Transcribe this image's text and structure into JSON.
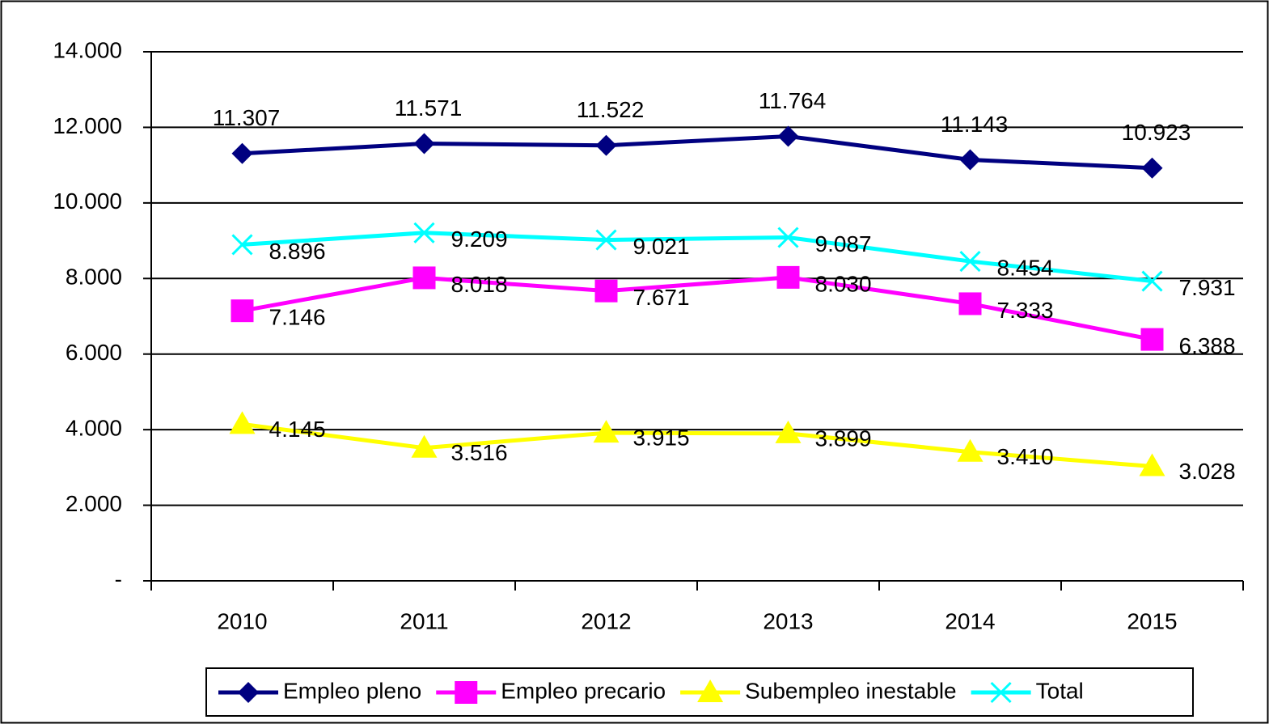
{
  "chart_data": {
    "type": "line",
    "categories": [
      "2010",
      "2011",
      "2012",
      "2013",
      "2014",
      "2015"
    ],
    "series": [
      {
        "name": "Empleo pleno",
        "color": "#000080",
        "marker": "diamond",
        "values": [
          11307,
          11571,
          11522,
          11764,
          11143,
          10923
        ],
        "value_labels": [
          "11.307",
          "11.571",
          "11.522",
          "11.764",
          "11.143",
          "10.923"
        ]
      },
      {
        "name": "Empleo precario",
        "color": "#ff00ff",
        "marker": "square",
        "values": [
          7146,
          8018,
          7671,
          8030,
          7333,
          6388
        ],
        "value_labels": [
          "7.146",
          "8.018",
          "7.671",
          "8.030",
          "7.333",
          "6.388"
        ]
      },
      {
        "name": "Subempleo inestable",
        "color": "#ffff00",
        "marker": "triangle",
        "values": [
          4145,
          3516,
          3915,
          3899,
          3410,
          3028
        ],
        "value_labels": [
          "4.145",
          "3.516",
          "3.915",
          "3.899",
          "3.410",
          "3.028"
        ]
      },
      {
        "name": "Total",
        "color": "#00ffff",
        "marker": "x",
        "values": [
          8896,
          9209,
          9021,
          9087,
          8454,
          7931
        ],
        "value_labels": [
          "8.896",
          "9.209",
          "9.021",
          "9.087",
          "8.454",
          "7.931"
        ]
      }
    ],
    "ylim": [
      0,
      14000
    ],
    "yticks": [
      {
        "value": 0,
        "label": "-"
      },
      {
        "value": 2000,
        "label": "2.000"
      },
      {
        "value": 4000,
        "label": "4.000"
      },
      {
        "value": 6000,
        "label": "6.000"
      },
      {
        "value": 8000,
        "label": "8.000"
      },
      {
        "value": 10000,
        "label": "10.000"
      },
      {
        "value": 12000,
        "label": "12.000"
      },
      {
        "value": 14000,
        "label": "14.000"
      }
    ],
    "grid": true,
    "legend": "bottom"
  }
}
